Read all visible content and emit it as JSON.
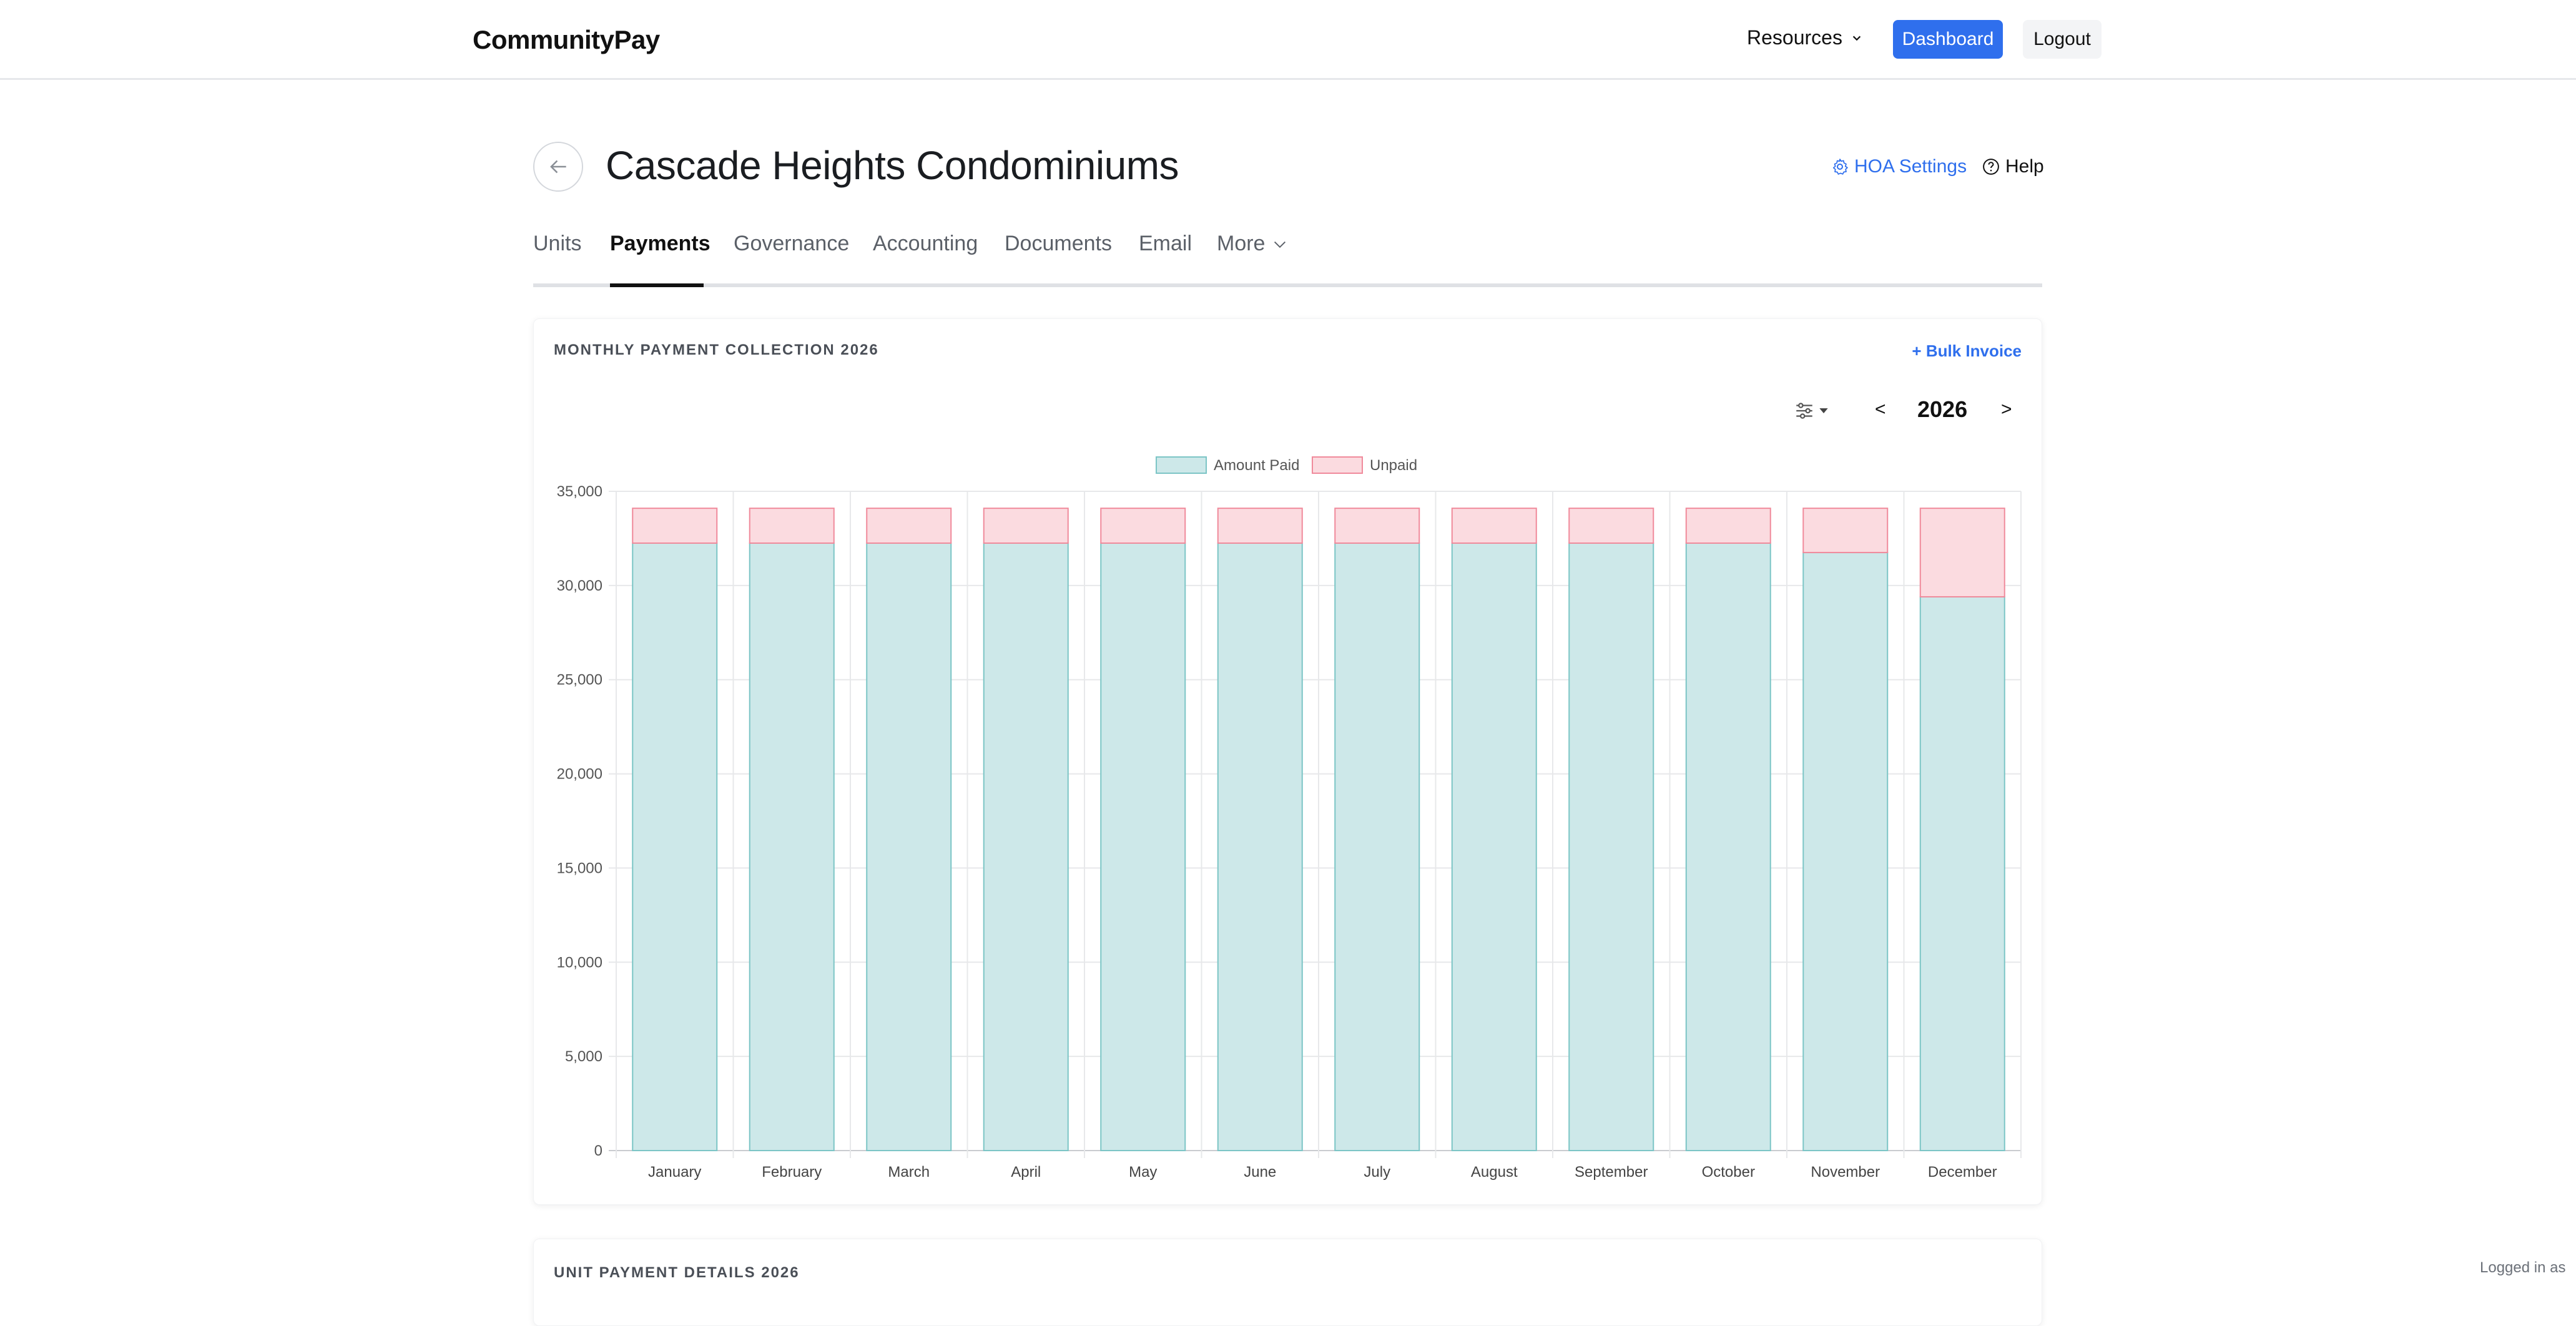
{
  "brand": "CommunityPay",
  "nav": {
    "resources_label": "Resources",
    "dashboard_label": "Dashboard",
    "logout_label": "Logout"
  },
  "header": {
    "title": "Cascade Heights Condominiums",
    "hoa_settings_label": "HOA Settings",
    "help_label": "Help"
  },
  "tabs": [
    {
      "label": "Units",
      "active": false
    },
    {
      "label": "Payments",
      "active": true
    },
    {
      "label": "Governance",
      "active": false
    },
    {
      "label": "Accounting",
      "active": false
    },
    {
      "label": "Documents",
      "active": false
    },
    {
      "label": "Email",
      "active": false
    },
    {
      "label": "More",
      "active": false
    }
  ],
  "chart_card": {
    "title": "MONTHLY PAYMENT COLLECTION 2026",
    "bulk_invoice_label": "+ Bulk Invoice",
    "year": "2026",
    "prev_label": "<",
    "next_label": ">"
  },
  "chart_data": {
    "type": "bar",
    "stacked": true,
    "categories": [
      "January",
      "February",
      "March",
      "April",
      "May",
      "June",
      "July",
      "August",
      "September",
      "October",
      "November",
      "December"
    ],
    "series": [
      {
        "name": "Amount Paid",
        "values": [
          32250,
          32250,
          32250,
          32250,
          32250,
          32250,
          32250,
          32250,
          32250,
          32250,
          31750,
          29400
        ],
        "color": "#cde8e9",
        "stroke": "#7cc5c6"
      },
      {
        "name": "Unpaid",
        "values": [
          1850,
          1850,
          1850,
          1850,
          1850,
          1850,
          1850,
          1850,
          1850,
          1850,
          2350,
          4700
        ],
        "color": "#fbdbe0",
        "stroke": "#f08a9b"
      }
    ],
    "ylim": [
      0,
      35000
    ],
    "yticks": [
      "0",
      "5,000",
      "10,000",
      "15,000",
      "20,000",
      "25,000",
      "30,000",
      "35,000"
    ],
    "grid": true,
    "legend_position": "top-center"
  },
  "details_card": {
    "title": "UNIT PAYMENT DETAILS 2026"
  },
  "footer": {
    "logged_in_text": "Logged in as"
  }
}
